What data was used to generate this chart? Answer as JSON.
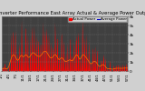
{
  "title": "Solar PV/Inverter Performance East Array Actual & Average Power Output",
  "title_fontsize": 3.8,
  "bg_color": "#d0d0d0",
  "plot_bg_color": "#404040",
  "bar_color": "#ff0000",
  "avg_line_color": "#ff6600",
  "line2_color": "#0000cc",
  "grid_color": "#808080",
  "ylim": [
    0,
    6
  ],
  "ylabel_fontsize": 3.2,
  "xlabel_fontsize": 2.8,
  "ytick_labels": [
    "0",
    "1k",
    "2k",
    "3k",
    "4k",
    "5k",
    "6k"
  ],
  "legend_labels": [
    "Actual Power",
    "Average Power"
  ],
  "legend_colors": [
    "#ff0000",
    "#0000cc"
  ],
  "n_points": 400,
  "days": 60,
  "seed": 17
}
